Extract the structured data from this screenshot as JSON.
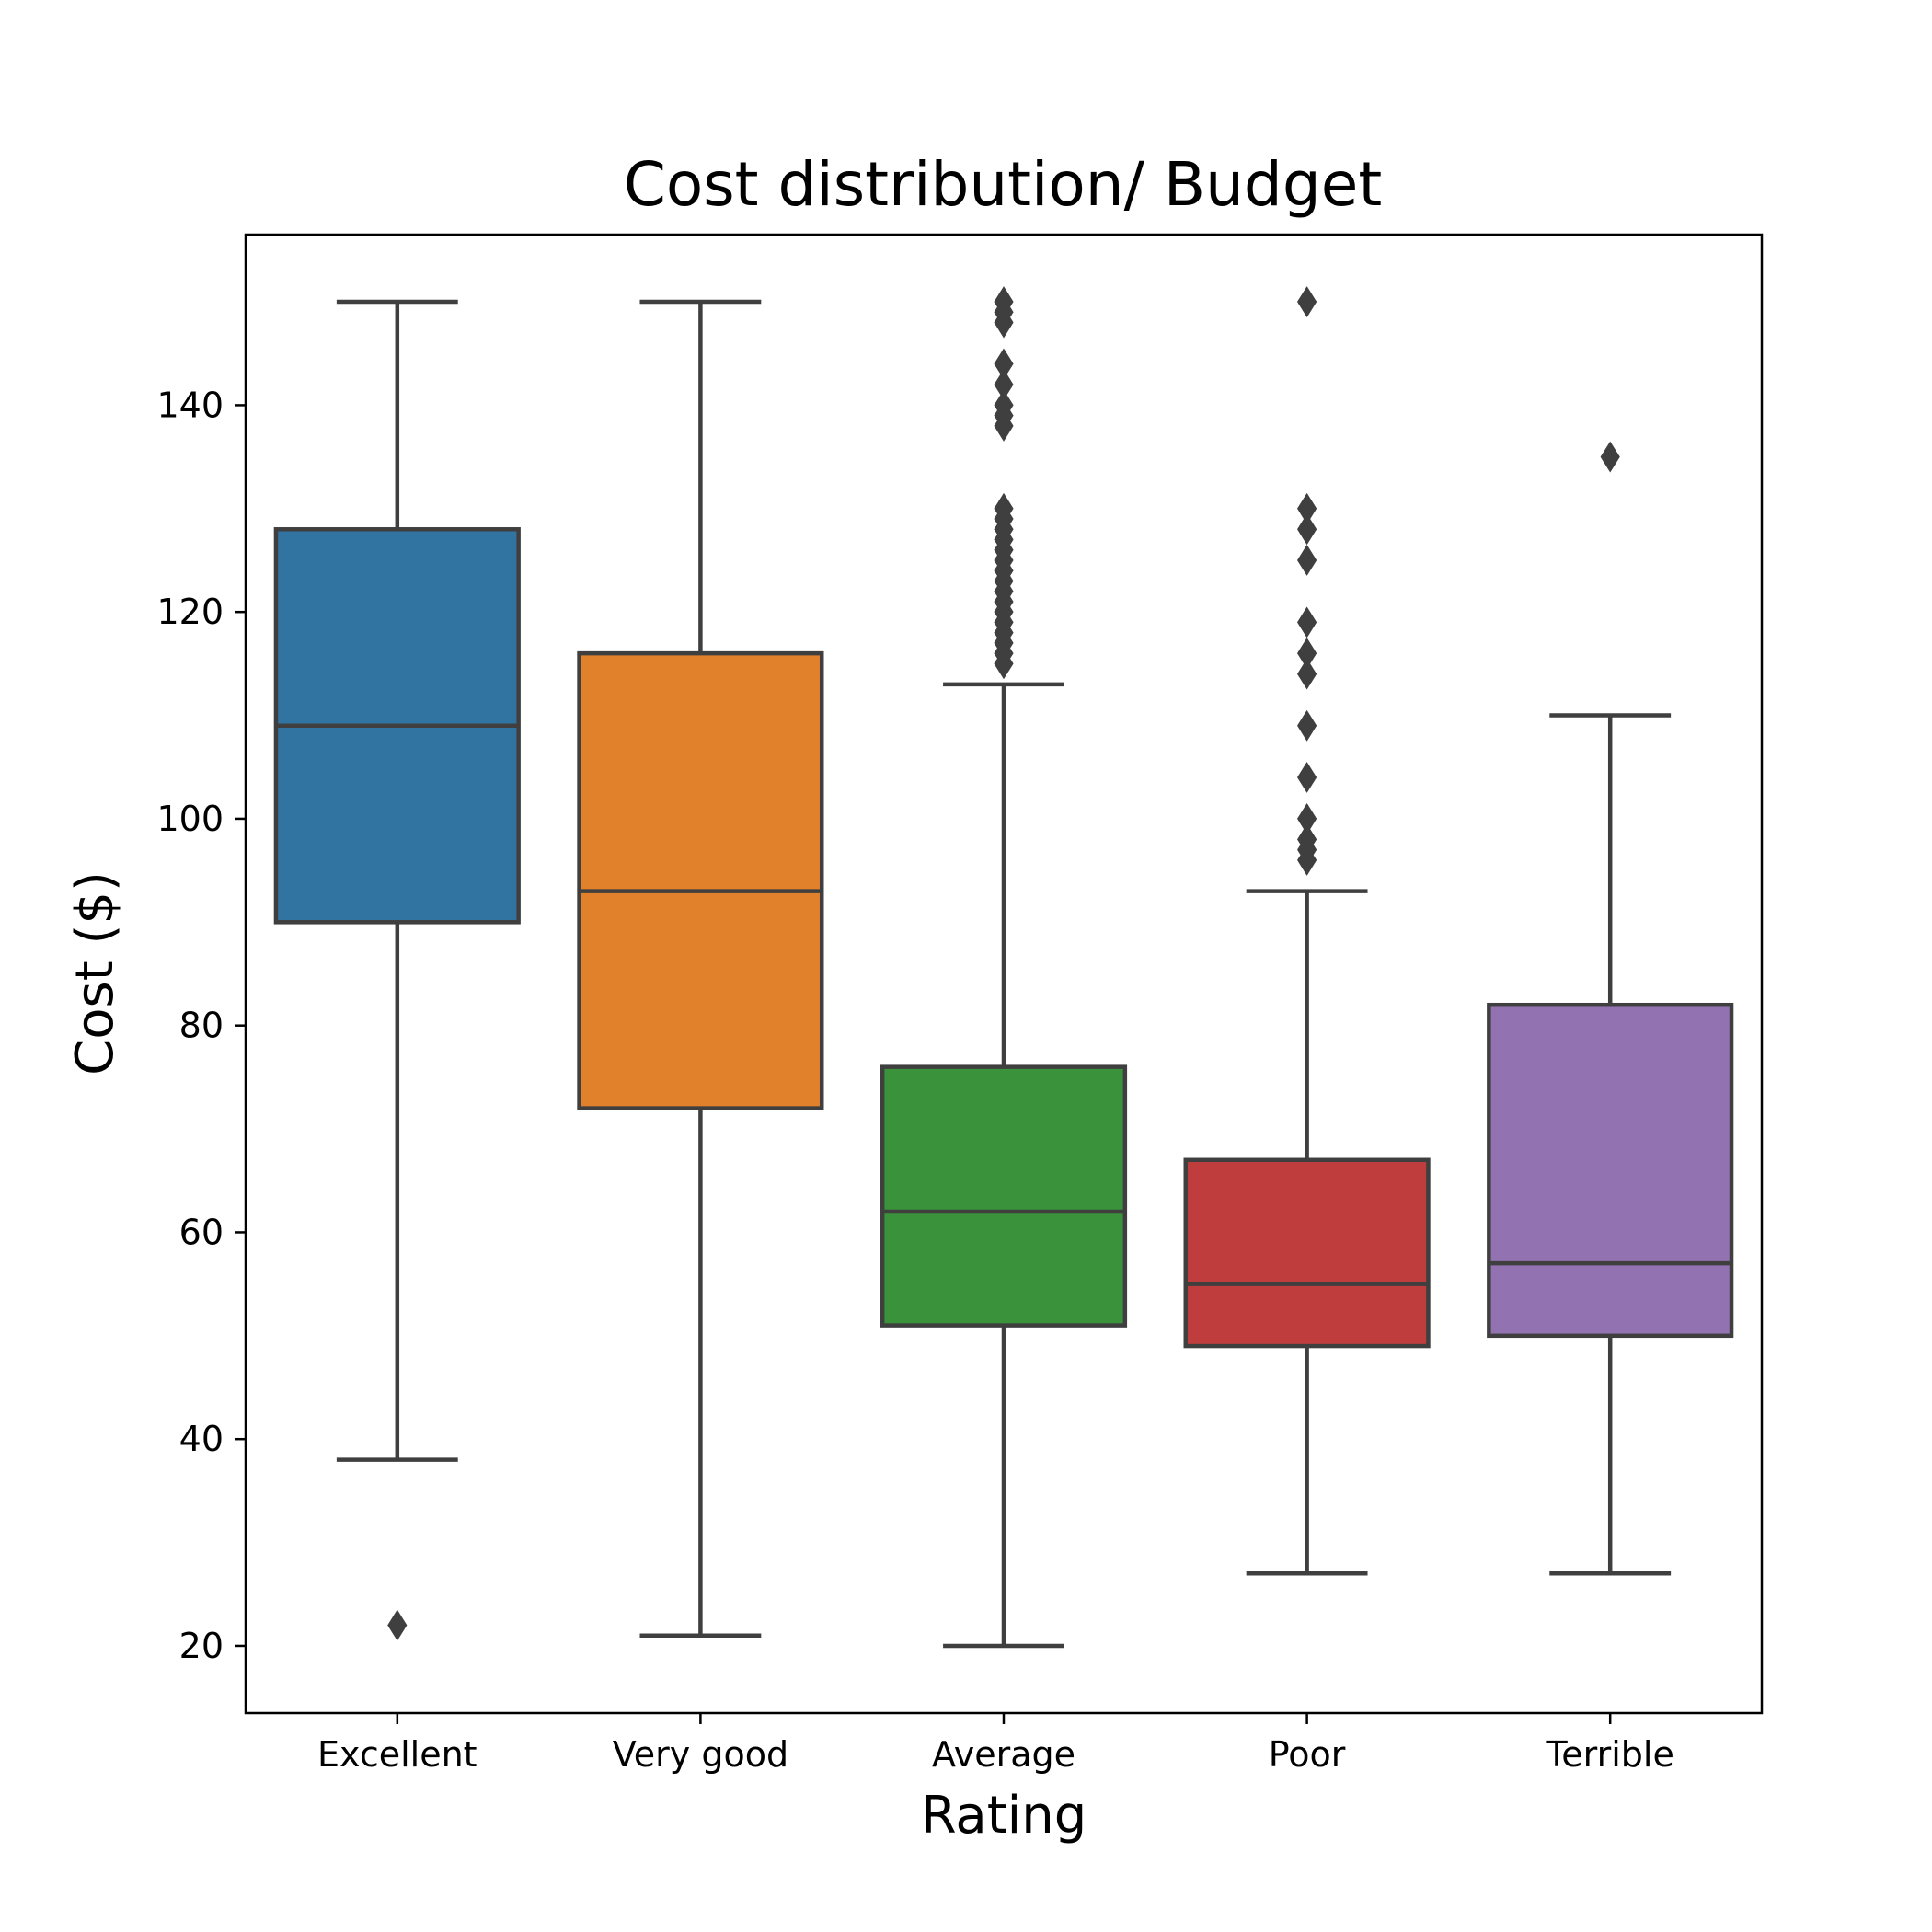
{
  "chart_data": {
    "type": "boxplot",
    "title": "Cost distribution/ Budget",
    "xlabel": "Rating",
    "ylabel": "Cost ($)",
    "categories": [
      "Excellent",
      "Very good",
      "Average",
      "Poor",
      "Terrible"
    ],
    "y_ticks": [
      20,
      40,
      60,
      80,
      100,
      120,
      140
    ],
    "ylim": [
      13.5,
      156.5
    ],
    "grid": false,
    "legend": "none",
    "colors": [
      "#3274a1",
      "#e1812c",
      "#3a923a",
      "#c03d3e",
      "#9372b2"
    ],
    "line_color": "#3f3f3f",
    "boxes": [
      {
        "category": "Excellent",
        "whisker_low": 38,
        "q1": 90,
        "median": 109,
        "q3": 128,
        "whisker_high": 150,
        "outliers": [
          22
        ]
      },
      {
        "category": "Very good",
        "whisker_low": 21,
        "q1": 72,
        "median": 93,
        "q3": 116,
        "whisker_high": 150,
        "outliers": []
      },
      {
        "category": "Average",
        "whisker_low": 20,
        "q1": 51,
        "median": 62,
        "q3": 76,
        "whisker_high": 113,
        "outliers": [
          115,
          116,
          117,
          118,
          119,
          120,
          121,
          122,
          123,
          124,
          125,
          126,
          127,
          128,
          129,
          130,
          138,
          139,
          140,
          142,
          144,
          148,
          149,
          150
        ]
      },
      {
        "category": "Poor",
        "whisker_low": 27,
        "q1": 49,
        "median": 55,
        "q3": 67,
        "whisker_high": 93,
        "outliers": [
          96,
          97,
          98,
          100,
          104,
          109,
          114,
          116,
          119,
          125,
          128,
          130,
          150
        ]
      },
      {
        "category": "Terrible",
        "whisker_low": 27,
        "q1": 50,
        "median": 57,
        "q3": 82,
        "whisker_high": 110,
        "outliers": [
          135
        ]
      }
    ]
  }
}
